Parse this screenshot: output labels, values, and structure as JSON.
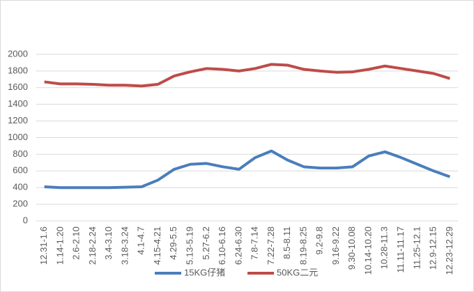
{
  "chart_data": {
    "type": "line",
    "categories": [
      "12.31-1.6",
      "1.14-1.20",
      "2.6-2.10",
      "2.18-2.24",
      "3.4-3.10",
      "3.18-3.24",
      "4.1-4.7",
      "4.15-4.21",
      "4.29-5.5",
      "5.13-5.19",
      "5.27-6.2",
      "6.10-6.16",
      "6.24-6.30",
      "7.8-7.14",
      "7.22-7.28",
      "8.5-8.11",
      "8.19-8.25",
      "9.2-9.8",
      "9.16-9.22",
      "9.30-10.08",
      "10.14-10.20",
      "10.28-11.3",
      "11.11-11.17",
      "11.25-12.1",
      "12.9-12.15",
      "12.23-12.29"
    ],
    "series": [
      {
        "name": "15KG仔猪",
        "color": "#4a7ebb",
        "values": [
          410,
          400,
          400,
          400,
          400,
          405,
          410,
          490,
          620,
          680,
          690,
          650,
          620,
          760,
          840,
          730,
          650,
          635,
          635,
          650,
          780,
          830,
          760,
          680,
          600,
          530
        ]
      },
      {
        "name": "50KG二元",
        "color": "#be4b48",
        "values": [
          1670,
          1645,
          1645,
          1640,
          1630,
          1630,
          1620,
          1640,
          1740,
          1790,
          1830,
          1820,
          1800,
          1830,
          1880,
          1870,
          1820,
          1800,
          1785,
          1790,
          1820,
          1860,
          1830,
          1800,
          1770,
          1710
        ]
      }
    ],
    "ylim": [
      0,
      2000
    ],
    "yticks": [
      0,
      200,
      400,
      600,
      800,
      1000,
      1200,
      1400,
      1600,
      1800,
      2000
    ],
    "grid": true,
    "legend": "bottom"
  }
}
